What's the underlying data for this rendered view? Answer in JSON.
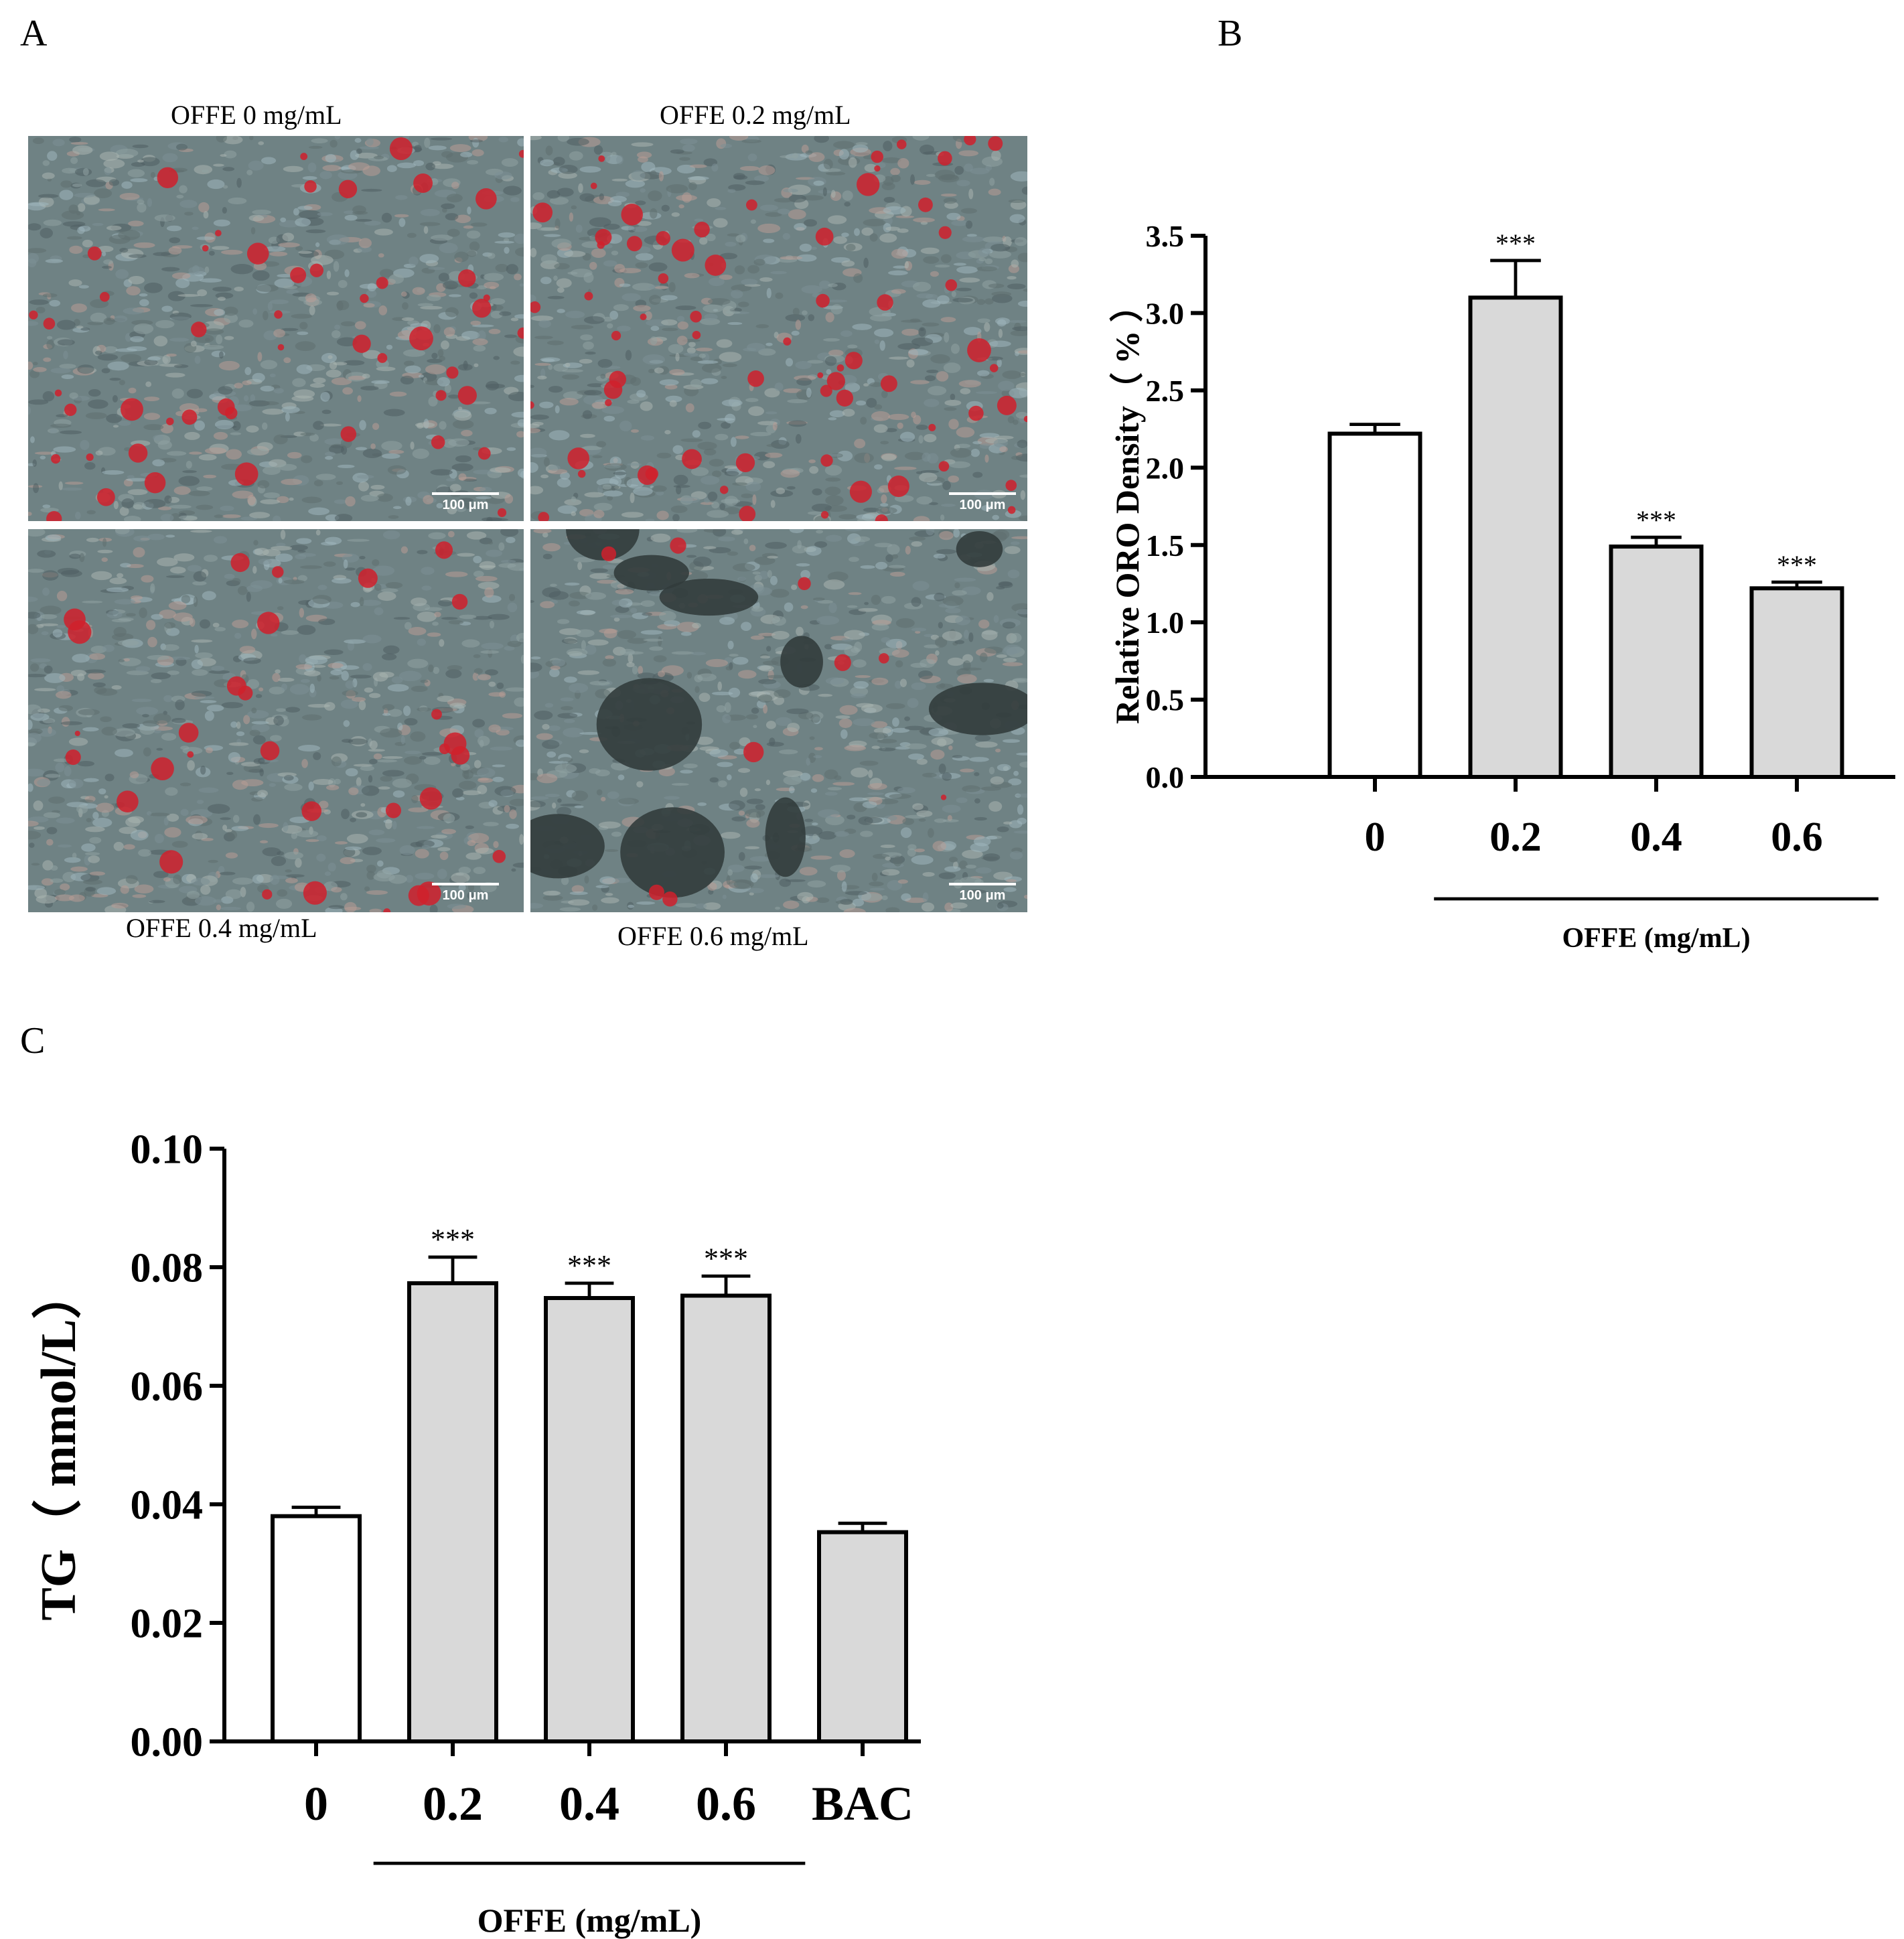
{
  "panels": {
    "a": {
      "letter": "A",
      "images": [
        {
          "label": "OFFE 0 mg/mL",
          "scale": "100 μm",
          "stain": 0.55
        },
        {
          "label": "OFFE 0.2 mg/mL",
          "scale": "100 μm",
          "stain": 0.75
        },
        {
          "label": "OFFE 0.4 mg/mL",
          "scale": "100 μm",
          "stain": 0.35
        },
        {
          "label": "OFFE 0.6 mg/mL",
          "scale": "100 μm",
          "stain": 0.1
        }
      ]
    },
    "b": {
      "letter": "B"
    },
    "c": {
      "letter": "C"
    }
  },
  "colors": {
    "control_bar": "#ffffff",
    "treated_bar": "#d9d9d9",
    "stain_red": "#d0202c",
    "tissue": "#6f8284"
  },
  "chart_data": [
    {
      "type": "bar",
      "categories": [
        "0",
        "0.2",
        "0.4",
        "0.6"
      ],
      "values": [
        2.22,
        3.1,
        1.49,
        1.22
      ],
      "errors": [
        0.06,
        0.24,
        0.06,
        0.04
      ],
      "significance": [
        "",
        "***",
        "***",
        "***"
      ],
      "fills": [
        "control",
        "treated",
        "treated",
        "treated"
      ],
      "ylabel": "Relative ORO Density（ % ）",
      "group_label": "OFFE (mg/mL)",
      "group_span": [
        1,
        3
      ],
      "ylim": [
        0,
        3.5
      ],
      "yticks": [
        "0.0",
        "0.5",
        "1.0",
        "1.5",
        "2.0",
        "2.5",
        "3.0",
        "3.5"
      ]
    },
    {
      "type": "bar",
      "categories": [
        "0",
        "0.2",
        "0.4",
        "0.6",
        "BAC"
      ],
      "values": [
        0.038,
        0.0773,
        0.0748,
        0.0752,
        0.0353
      ],
      "errors": [
        0.0015,
        0.0044,
        0.0025,
        0.0033,
        0.0015
      ],
      "significance": [
        "",
        "***",
        "***",
        "***",
        ""
      ],
      "fills": [
        "control",
        "treated",
        "treated",
        "treated",
        "treated"
      ],
      "ylabel": "TG（ mmol/L）",
      "group_label": "OFFE (mg/mL)",
      "group_span": [
        1,
        3
      ],
      "ylim": [
        0,
        0.1
      ],
      "yticks": [
        "0.00",
        "0.02",
        "0.04",
        "0.06",
        "0.08",
        "0.10"
      ]
    }
  ]
}
